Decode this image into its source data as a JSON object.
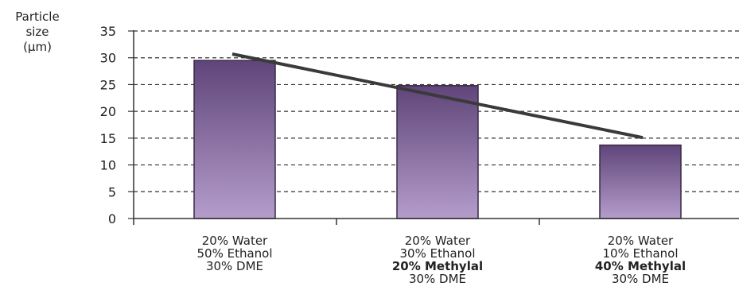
{
  "chart_data": {
    "type": "bar",
    "title": "",
    "ylabel": [
      "Particle",
      "size",
      "(μm)"
    ],
    "ylim": [
      0,
      35
    ],
    "yticks": [
      0,
      5,
      10,
      15,
      20,
      25,
      30,
      35
    ],
    "grid": true,
    "categories": [
      {
        "lines": [
          {
            "text": "20% Water",
            "bold": false
          },
          {
            "text": "50% Ethanol",
            "bold": false
          },
          {
            "text": "30% DME",
            "bold": false
          }
        ]
      },
      {
        "lines": [
          {
            "text": "20% Water",
            "bold": false
          },
          {
            "text": "30% Ethanol",
            "bold": false
          },
          {
            "text": "20% Methylal",
            "bold": true
          },
          {
            "text": "30% DME",
            "bold": false
          }
        ]
      },
      {
        "lines": [
          {
            "text": "20% Water",
            "bold": false
          },
          {
            "text": "10% Ethanol",
            "bold": false
          },
          {
            "text": "40% Methylal",
            "bold": true
          },
          {
            "text": "30% DME",
            "bold": false
          }
        ]
      }
    ],
    "values": [
      29.5,
      24.8,
      13.7
    ],
    "trendline": {
      "start": 30.7,
      "end": 15.1
    },
    "colors": {
      "bar_top": "#5f4579",
      "bar_bottom": "#b49ccb",
      "bar_stroke": "#3a2a45",
      "trend": "#3a3a3a",
      "grid": "#333333",
      "axis": "#333333"
    }
  }
}
